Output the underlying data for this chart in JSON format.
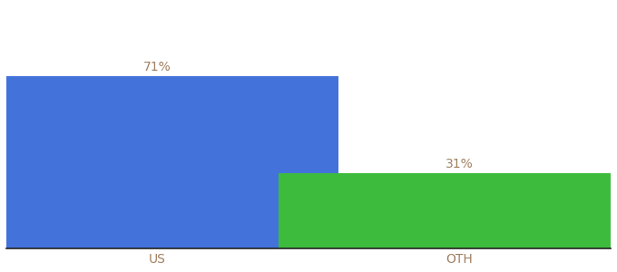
{
  "categories": [
    "US",
    "OTH"
  ],
  "values": [
    71,
    31
  ],
  "bar_colors": [
    "#4472db",
    "#3dbb3d"
  ],
  "label_color": "#a08060",
  "tick_label_color": "#a08060",
  "label_fontsize": 10,
  "tick_fontsize": 10,
  "ylim": [
    0,
    100
  ],
  "bar_width": 0.6,
  "background_color": "#ffffff",
  "bottom_spine_color": "#222222",
  "bar_positions": [
    0.25,
    0.75
  ]
}
